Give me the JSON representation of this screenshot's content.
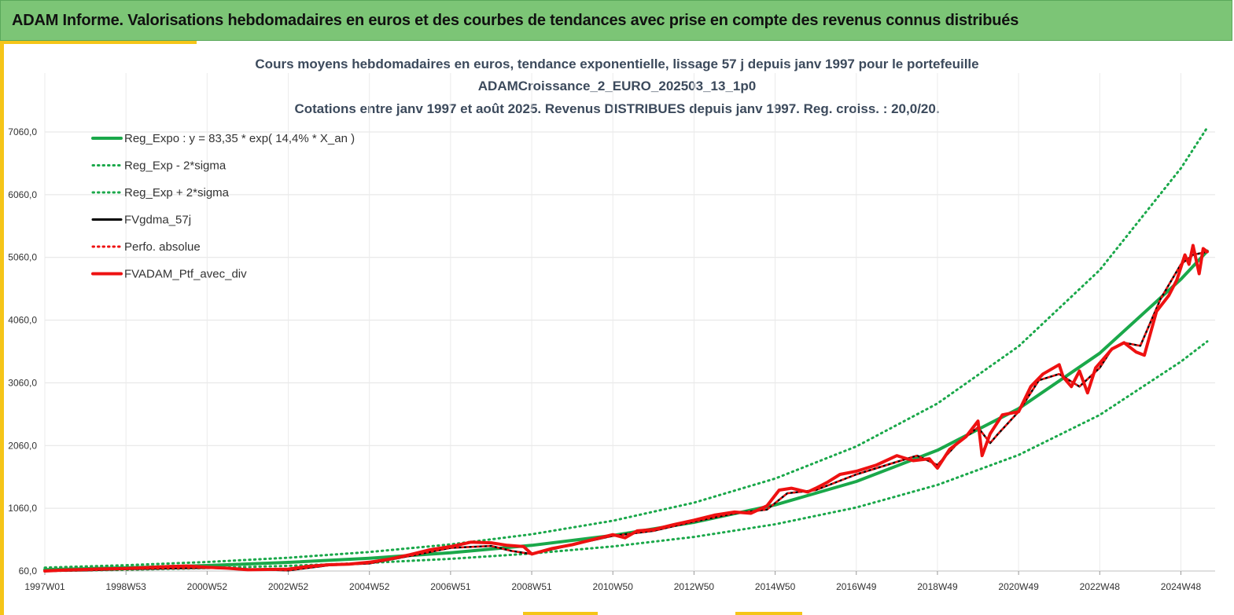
{
  "header": {
    "title": "ADAM Informe. Valorisations hebdomadaires en euros et des courbes de tendances avec prise en compte des revenus connus distribués"
  },
  "chart_data": {
    "type": "line",
    "title": [
      "Cours moyens hebdomadaires  en euros, tendance exponentielle, lissage 57 j depuis janv 1997 pour le portefeuille",
      "ADAMCroissance_2_EURO_202503_13_1p0",
      "Cotations  entre janv 1997 et août 2025. Revenus DISTRIBUES depuis janv 1997. Reg. croiss. : 20,0/20."
    ],
    "xlabel": "",
    "ylabel": "",
    "ylim": [
      60,
      7060
    ],
    "xlim": [
      1997.0,
      2025.65
    ],
    "y_ticks": [
      {
        "value": 60,
        "label": "60,0"
      },
      {
        "value": 1060,
        "label": "1060,0"
      },
      {
        "value": 2060,
        "label": "2060,0"
      },
      {
        "value": 3060,
        "label": "3060,0"
      },
      {
        "value": 4060,
        "label": "4060,0"
      },
      {
        "value": 5060,
        "label": "5060,0"
      },
      {
        "value": 6060,
        "label": "6060,0"
      },
      {
        "value": 7060,
        "label": "7060,0"
      }
    ],
    "x_ticks": [
      {
        "value": 1997.0,
        "label": "1997W01"
      },
      {
        "value": 1999.0,
        "label": "1998W53"
      },
      {
        "value": 2001.0,
        "label": "2000W52"
      },
      {
        "value": 2003.0,
        "label": "2002W52"
      },
      {
        "value": 2005.0,
        "label": "2004W52"
      },
      {
        "value": 2007.0,
        "label": "2006W51"
      },
      {
        "value": 2009.0,
        "label": "2008W51"
      },
      {
        "value": 2011.0,
        "label": "2010W50"
      },
      {
        "value": 2013.0,
        "label": "2012W50"
      },
      {
        "value": 2015.0,
        "label": "2014W50"
      },
      {
        "value": 2017.0,
        "label": "2016W49"
      },
      {
        "value": 2019.0,
        "label": "2018W49"
      },
      {
        "value": 2021.0,
        "label": "2020W49"
      },
      {
        "value": 2023.0,
        "label": "2022W48"
      },
      {
        "value": 2025.0,
        "label": "2024W48"
      }
    ],
    "grid": true,
    "legend_position": "top-left",
    "series": [
      {
        "name": "Reg_Expo : y = 83,35 * exp( 14,4% *  X_an )",
        "color": "#1aa84a",
        "style": "solid",
        "width": 4,
        "x": [
          1997.0,
          1999.0,
          2001.0,
          2003.0,
          2005.0,
          2007.0,
          2009.0,
          2011.0,
          2013.0,
          2015.0,
          2017.0,
          2019.0,
          2021.0,
          2023.0,
          2025.0,
          2025.65
        ],
        "y": [
          83,
          111,
          148,
          198,
          264,
          352,
          470,
          627,
          836,
          1115,
          1488,
          1985,
          2648,
          3532,
          4712,
          5160
        ]
      },
      {
        "name": "Reg_Exp - 2*sigma",
        "color": "#1aa84a",
        "style": "dotted",
        "width": 3,
        "x": [
          1997.0,
          1999.0,
          2001.0,
          2003.0,
          2005.0,
          2007.0,
          2009.0,
          2011.0,
          2013.0,
          2015.0,
          2017.0,
          2019.0,
          2021.0,
          2023.0,
          2025.0,
          2025.65
        ],
        "y": [
          60,
          80,
          107,
          143,
          190,
          254,
          339,
          452,
          603,
          805,
          1073,
          1432,
          1910,
          2548,
          3399,
          3720
        ]
      },
      {
        "name": "Reg_Exp + 2*sigma",
        "color": "#1aa84a",
        "style": "dotted",
        "width": 3,
        "x": [
          1997.0,
          1999.0,
          2001.0,
          2003.0,
          2005.0,
          2007.0,
          2009.0,
          2011.0,
          2013.0,
          2015.0,
          2017.0,
          2019.0,
          2021.0,
          2023.0,
          2025.0,
          2025.65
        ],
        "y": [
          114,
          153,
          204,
          272,
          363,
          484,
          646,
          862,
          1150,
          1534,
          2046,
          2730,
          3642,
          4858,
          6481,
          7130
        ]
      },
      {
        "name": "FVgdma_57j",
        "color": "#000000",
        "style": "solid",
        "width": 2.5,
        "x": [
          1997.0,
          1998.0,
          1999.0,
          2000.0,
          2001.0,
          2002.0,
          2003.0,
          2004.0,
          2005.0,
          2006.0,
          2007.0,
          2008.0,
          2008.5,
          2009.0,
          2010.0,
          2011.0,
          2012.0,
          2013.0,
          2014.0,
          2014.8,
          2015.3,
          2016.0,
          2017.0,
          2018.0,
          2018.5,
          2019.0,
          2019.5,
          2020.0,
          2020.3,
          2020.5,
          2021.0,
          2021.5,
          2022.0,
          2022.5,
          2023.0,
          2023.3,
          2023.6,
          2024.0,
          2024.5,
          2025.0,
          2025.3,
          2025.65
        ],
        "y": [
          60,
          70,
          90,
          100,
          110,
          90,
          70,
          150,
          180,
          300,
          430,
          460,
          380,
          330,
          480,
          620,
          700,
          850,
          980,
          1040,
          1300,
          1350,
          1600,
          1800,
          1900,
          1750,
          2100,
          2350,
          2100,
          2250,
          2600,
          3100,
          3200,
          3000,
          3300,
          3600,
          3700,
          3650,
          4400,
          4950,
          5100,
          5150
        ]
      },
      {
        "name": "Perfo. absolue",
        "color": "#ee1111",
        "style": "dotted",
        "width": 2.5,
        "x": [
          1997.0,
          1998.0,
          1999.0,
          2000.0,
          2001.0,
          2002.0,
          2003.0,
          2004.0,
          2005.0,
          2006.0,
          2007.0,
          2008.0,
          2008.5,
          2009.0,
          2010.0,
          2011.0,
          2012.0,
          2013.0,
          2014.0,
          2014.8,
          2015.3,
          2016.0,
          2017.0,
          2018.0,
          2018.5,
          2019.0,
          2019.5,
          2020.0,
          2020.3,
          2020.5,
          2021.0,
          2021.5,
          2022.0,
          2022.5,
          2023.0,
          2023.3,
          2023.6,
          2024.0,
          2024.5,
          2025.0,
          2025.3,
          2025.65
        ],
        "y": [
          60,
          70,
          90,
          100,
          110,
          90,
          70,
          150,
          180,
          300,
          430,
          460,
          380,
          330,
          480,
          620,
          700,
          850,
          980,
          1040,
          1300,
          1350,
          1600,
          1800,
          1900,
          1750,
          2100,
          2350,
          2100,
          2250,
          2600,
          3100,
          3200,
          3000,
          3300,
          3600,
          3700,
          3650,
          4400,
          4950,
          5100,
          5150
        ]
      },
      {
        "name": "FVADAM_Ptf_avec_div",
        "color": "#ee1111",
        "style": "solid",
        "width": 4,
        "x": [
          1997.0,
          1997.5,
          1998.0,
          1998.5,
          1999.0,
          1999.5,
          2000.0,
          2000.5,
          2001.0,
          2001.5,
          2002.0,
          2002.5,
          2003.0,
          2003.5,
          2004.0,
          2004.5,
          2005.0,
          2005.5,
          2006.0,
          2006.5,
          2007.0,
          2007.5,
          2008.0,
          2008.4,
          2008.8,
          2009.0,
          2009.5,
          2010.0,
          2010.5,
          2011.0,
          2011.3,
          2011.6,
          2012.0,
          2012.5,
          2013.0,
          2013.5,
          2014.0,
          2014.4,
          2014.8,
          2015.1,
          2015.4,
          2015.8,
          2016.0,
          2016.3,
          2016.6,
          2017.0,
          2017.5,
          2018.0,
          2018.4,
          2018.8,
          2019.0,
          2019.3,
          2019.7,
          2020.0,
          2020.1,
          2020.3,
          2020.6,
          2021.0,
          2021.3,
          2021.6,
          2022.0,
          2022.1,
          2022.3,
          2022.5,
          2022.7,
          2022.9,
          2023.1,
          2023.3,
          2023.6,
          2023.9,
          2024.1,
          2024.4,
          2024.7,
          2024.9,
          2025.1,
          2025.2,
          2025.3,
          2025.45,
          2025.55,
          2025.65
        ],
        "y": [
          60,
          75,
          85,
          95,
          100,
          115,
          130,
          140,
          120,
          105,
          80,
          85,
          90,
          135,
          160,
          170,
          200,
          250,
          320,
          400,
          450,
          520,
          510,
          470,
          450,
          330,
          420,
          480,
          560,
          640,
          590,
          700,
          720,
          800,
          870,
          950,
          1000,
          980,
          1100,
          1350,
          1380,
          1320,
          1380,
          1480,
          1600,
          1650,
          1750,
          1900,
          1820,
          1850,
          1700,
          2000,
          2200,
          2450,
          1900,
          2250,
          2550,
          2600,
          3000,
          3200,
          3350,
          3150,
          3000,
          3250,
          2900,
          3300,
          3450,
          3600,
          3700,
          3550,
          3500,
          4200,
          4450,
          4700,
          5100,
          4950,
          5250,
          4800,
          5200,
          5150
        ]
      }
    ]
  }
}
